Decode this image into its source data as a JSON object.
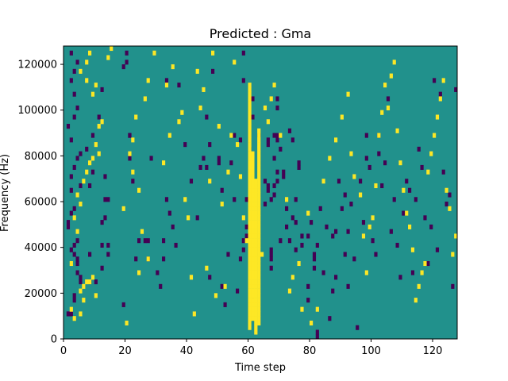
{
  "chart_data": {
    "type": "heatmap",
    "title": "Predicted : Gma",
    "xlabel": "Time step",
    "ylabel": "Frequency (Hz)",
    "xlim": [
      0,
      128
    ],
    "ylim": [
      0,
      128000
    ],
    "x_ticks": [
      0,
      20,
      40,
      60,
      80,
      100,
      120
    ],
    "x_tick_labels": [
      "0",
      "20",
      "40",
      "60",
      "80",
      "100",
      "120"
    ],
    "y_ticks": [
      0,
      20000,
      40000,
      60000,
      80000,
      100000,
      120000
    ],
    "y_tick_labels": [
      "0",
      "20000",
      "40000",
      "60000",
      "80000",
      "100000",
      "120000"
    ],
    "rows": 64,
    "row_height_hz": 2000,
    "colormap": "viridis",
    "value_range": [
      0,
      2
    ],
    "background_value": 1,
    "colors": {
      "0": "#440154",
      "1": "#21918c",
      "2": "#fde725"
    },
    "cells": [
      [
        1,
        5,
        0
      ],
      [
        1,
        5,
        0
      ],
      [
        2,
        5,
        0
      ],
      [
        3,
        8,
        0
      ],
      [
        3,
        9,
        0
      ],
      [
        5,
        13,
        0
      ],
      [
        5,
        12,
        0
      ],
      [
        4,
        14,
        0
      ],
      [
        4,
        16,
        0
      ],
      [
        4,
        17,
        0
      ],
      [
        3,
        18,
        0
      ],
      [
        2,
        19,
        0
      ],
      [
        3,
        20,
        0
      ],
      [
        4,
        21,
        0
      ],
      [
        1,
        24,
        0
      ],
      [
        1,
        25,
        0
      ],
      [
        2,
        27,
        0
      ],
      [
        3,
        28,
        0
      ],
      [
        2,
        32,
        0
      ],
      [
        5,
        33,
        0
      ],
      [
        2,
        35,
        0
      ],
      [
        3,
        37,
        0
      ],
      [
        4,
        39,
        0
      ],
      [
        5,
        40,
        0
      ],
      [
        2,
        43,
        0
      ],
      [
        1,
        46,
        0
      ],
      [
        3,
        48,
        0
      ],
      [
        4,
        50,
        0
      ],
      [
        3,
        53,
        0
      ],
      [
        2,
        56,
        0
      ],
      [
        3,
        58,
        0
      ],
      [
        4,
        60,
        0
      ],
      [
        2,
        62,
        0
      ],
      [
        7,
        41,
        0
      ],
      [
        8,
        33,
        0
      ],
      [
        9,
        44,
        0
      ],
      [
        9,
        36,
        0
      ],
      [
        10,
        12,
        0
      ],
      [
        12,
        54,
        0
      ],
      [
        11,
        48,
        0
      ],
      [
        12,
        15,
        0
      ],
      [
        12,
        20,
        0
      ],
      [
        12,
        25,
        0
      ],
      [
        8,
        12,
        0
      ],
      [
        13,
        26,
        0
      ],
      [
        13,
        30,
        0
      ],
      [
        13,
        35,
        0
      ],
      [
        14,
        30,
        0
      ],
      [
        14,
        18,
        0
      ],
      [
        14,
        20,
        0
      ],
      [
        8,
        18,
        0
      ],
      [
        19,
        7,
        0
      ],
      [
        19,
        59,
        0
      ],
      [
        20,
        62,
        0
      ],
      [
        20,
        60,
        0
      ],
      [
        21,
        39,
        0
      ],
      [
        21,
        44,
        0
      ],
      [
        21,
        44,
        0
      ],
      [
        22,
        34,
        0
      ],
      [
        23,
        17,
        0
      ],
      [
        24,
        21,
        0
      ],
      [
        26,
        21,
        0
      ],
      [
        27,
        21,
        0
      ],
      [
        27,
        17,
        0
      ],
      [
        28,
        39,
        0
      ],
      [
        30,
        14,
        0
      ],
      [
        31,
        11,
        0
      ],
      [
        32,
        17,
        0
      ],
      [
        32,
        21,
        0
      ],
      [
        33,
        30,
        0
      ],
      [
        34,
        27,
        0
      ],
      [
        35,
        24,
        0
      ],
      [
        36,
        20,
        0
      ],
      [
        33,
        56,
        0
      ],
      [
        37,
        55,
        0
      ],
      [
        39,
        42,
        0
      ],
      [
        41,
        34,
        0
      ],
      [
        43,
        26,
        0
      ],
      [
        44,
        37,
        0
      ],
      [
        45,
        39,
        0
      ],
      [
        46,
        48,
        0
      ],
      [
        46,
        37,
        0
      ],
      [
        47,
        42,
        0
      ],
      [
        47,
        13,
        0
      ],
      [
        48,
        58,
        0
      ],
      [
        50,
        38,
        0
      ],
      [
        50,
        39,
        0
      ],
      [
        51,
        11,
        0
      ],
      [
        51,
        32,
        0
      ],
      [
        52,
        7,
        0
      ],
      [
        53,
        18,
        0
      ],
      [
        54,
        38,
        0
      ],
      [
        55,
        44,
        0
      ],
      [
        55,
        30,
        0
      ],
      [
        56,
        10,
        0
      ],
      [
        57,
        43,
        0
      ],
      [
        58,
        62,
        0
      ],
      [
        58,
        56,
        0
      ],
      [
        59,
        24,
        0
      ],
      [
        61,
        52,
        0
      ],
      [
        61,
        48,
        0
      ],
      [
        61,
        9,
        0
      ],
      [
        57,
        17,
        0
      ],
      [
        58,
        19,
        0
      ],
      [
        58,
        21,
        0
      ],
      [
        59,
        22,
        0
      ],
      [
        59,
        30,
        0
      ],
      [
        60,
        40,
        0
      ],
      [
        60,
        41,
        0
      ],
      [
        63,
        44,
        0
      ],
      [
        65,
        34,
        0
      ],
      [
        65,
        29,
        0
      ],
      [
        66,
        32,
        0
      ],
      [
        66,
        33,
        0
      ],
      [
        66,
        42,
        0
      ],
      [
        66,
        43,
        0
      ],
      [
        67,
        15,
        0
      ],
      [
        67,
        17,
        0
      ],
      [
        67,
        18,
        0
      ],
      [
        67,
        19,
        0
      ],
      [
        67,
        30,
        0
      ],
      [
        68,
        44,
        0
      ],
      [
        68,
        39,
        0
      ],
      [
        68,
        31,
        0
      ],
      [
        68,
        33,
        0
      ],
      [
        69,
        36,
        0
      ],
      [
        69,
        34,
        0
      ],
      [
        69,
        43,
        0
      ],
      [
        69,
        44,
        0
      ],
      [
        69,
        50,
        0
      ],
      [
        69,
        52,
        0
      ],
      [
        70,
        41,
        0
      ],
      [
        70,
        21,
        0
      ],
      [
        71,
        35,
        0
      ],
      [
        71,
        36,
        0
      ],
      [
        72,
        24,
        0
      ],
      [
        72,
        28,
        0
      ],
      [
        73,
        21,
        0
      ],
      [
        73,
        45,
        0
      ],
      [
        74,
        26,
        0
      ],
      [
        74,
        43,
        0
      ],
      [
        75,
        19,
        0
      ],
      [
        75,
        25,
        0
      ],
      [
        75,
        30,
        0
      ],
      [
        76,
        37,
        0
      ],
      [
        76,
        38,
        0
      ],
      [
        77,
        20,
        0
      ],
      [
        77,
        22,
        0
      ],
      [
        79,
        22,
        0
      ],
      [
        79,
        11,
        0
      ],
      [
        79,
        8,
        0
      ],
      [
        80,
        25,
        0
      ],
      [
        81,
        17,
        0
      ],
      [
        81,
        15,
        0
      ],
      [
        81,
        18,
        0
      ],
      [
        82,
        20,
        0
      ],
      [
        82,
        0,
        0
      ],
      [
        82,
        1,
        0
      ],
      [
        83,
        28,
        0
      ],
      [
        84,
        14,
        0
      ],
      [
        85,
        24,
        0
      ],
      [
        86,
        4,
        0
      ],
      [
        87,
        10,
        0
      ],
      [
        87,
        22,
        0
      ],
      [
        88,
        23,
        0
      ],
      [
        88,
        13,
        0
      ],
      [
        89,
        34,
        0
      ],
      [
        90,
        28,
        0
      ],
      [
        91,
        31,
        0
      ],
      [
        91,
        18,
        0
      ],
      [
        92,
        11,
        0
      ],
      [
        92,
        23,
        0
      ],
      [
        93,
        29,
        0
      ],
      [
        94,
        17,
        0
      ],
      [
        95,
        2,
        0
      ],
      [
        96,
        34,
        0
      ],
      [
        97,
        25,
        0
      ],
      [
        98,
        44,
        0
      ],
      [
        98,
        39,
        0
      ],
      [
        99,
        37,
        0
      ],
      [
        100,
        21,
        0
      ],
      [
        101,
        18,
        0
      ],
      [
        102,
        44,
        0
      ],
      [
        102,
        40,
        0
      ],
      [
        103,
        33,
        0
      ],
      [
        104,
        38,
        0
      ],
      [
        105,
        52,
        0
      ],
      [
        106,
        23,
        0
      ],
      [
        107,
        30,
        0
      ],
      [
        108,
        20,
        0
      ],
      [
        109,
        13,
        0
      ],
      [
        110,
        27,
        0
      ],
      [
        111,
        34,
        0
      ],
      [
        112,
        32,
        0
      ],
      [
        113,
        14,
        0
      ],
      [
        114,
        30,
        0
      ],
      [
        115,
        41,
        0
      ],
      [
        116,
        37,
        0
      ],
      [
        117,
        26,
        0
      ],
      [
        118,
        16,
        0
      ],
      [
        119,
        24,
        0
      ],
      [
        120,
        56,
        0
      ],
      [
        121,
        19,
        0
      ],
      [
        122,
        53,
        0
      ],
      [
        123,
        36,
        0
      ],
      [
        124,
        29,
        0
      ],
      [
        125,
        31,
        0
      ],
      [
        126,
        11,
        0
      ],
      [
        127,
        54,
        0
      ],
      [
        3,
        4,
        2
      ],
      [
        5,
        5,
        2
      ],
      [
        2,
        6,
        2
      ],
      [
        6,
        8,
        2
      ],
      [
        5,
        10,
        2
      ],
      [
        6,
        11,
        2
      ],
      [
        7,
        12,
        2
      ],
      [
        8,
        12,
        2
      ],
      [
        9,
        13,
        2
      ],
      [
        10,
        9,
        2
      ],
      [
        2,
        16,
        2
      ],
      [
        4,
        23,
        2
      ],
      [
        3,
        26,
        2
      ],
      [
        5,
        29,
        2
      ],
      [
        4,
        31,
        2
      ],
      [
        6,
        34,
        2
      ],
      [
        7,
        36,
        2
      ],
      [
        8,
        38,
        2
      ],
      [
        9,
        39,
        2
      ],
      [
        11,
        40,
        2
      ],
      [
        10,
        42,
        2
      ],
      [
        11,
        46,
        2
      ],
      [
        12,
        47,
        2
      ],
      [
        9,
        53,
        2
      ],
      [
        10,
        55,
        2
      ],
      [
        14,
        61,
        2
      ],
      [
        15,
        63,
        2
      ],
      [
        7,
        56,
        2
      ],
      [
        5,
        58,
        2
      ],
      [
        7,
        60,
        2
      ],
      [
        8,
        62,
        2
      ],
      [
        20,
        3,
        2
      ],
      [
        24,
        14,
        2
      ],
      [
        27,
        17,
        2
      ],
      [
        25,
        23,
        2
      ],
      [
        19,
        28,
        2
      ],
      [
        24,
        32,
        2
      ],
      [
        22,
        36,
        2
      ],
      [
        21,
        40,
        2
      ],
      [
        22,
        43,
        2
      ],
      [
        23,
        48,
        2
      ],
      [
        26,
        52,
        2
      ],
      [
        27,
        56,
        2
      ],
      [
        29,
        62,
        2
      ],
      [
        32,
        38,
        2
      ],
      [
        34,
        44,
        2
      ],
      [
        33,
        55,
        2
      ],
      [
        35,
        59,
        2
      ],
      [
        37,
        47,
        2
      ],
      [
        38,
        49,
        2
      ],
      [
        39,
        30,
        2
      ],
      [
        40,
        26,
        2
      ],
      [
        41,
        13,
        2
      ],
      [
        42,
        5,
        2
      ],
      [
        43,
        58,
        2
      ],
      [
        44,
        50,
        2
      ],
      [
        45,
        54,
        2
      ],
      [
        46,
        15,
        2
      ],
      [
        47,
        34,
        2
      ],
      [
        48,
        62,
        2
      ],
      [
        49,
        9,
        2
      ],
      [
        50,
        46,
        2
      ],
      [
        51,
        29,
        2
      ],
      [
        52,
        11,
        2
      ],
      [
        53,
        36,
        2
      ],
      [
        54,
        44,
        2
      ],
      [
        55,
        60,
        2
      ],
      [
        56,
        42,
        2
      ],
      [
        57,
        35,
        2
      ],
      [
        58,
        26,
        2
      ],
      [
        59,
        21,
        2
      ],
      [
        64,
        18,
        2
      ],
      [
        65,
        50,
        2
      ],
      [
        66,
        47,
        2
      ],
      [
        67,
        52,
        2
      ],
      [
        68,
        55,
        2
      ],
      [
        70,
        44,
        2
      ],
      [
        72,
        30,
        2
      ],
      [
        73,
        10,
        2
      ],
      [
        74,
        13,
        2
      ],
      [
        76,
        16,
        2
      ],
      [
        77,
        6,
        2
      ],
      [
        79,
        27,
        2
      ],
      [
        80,
        3,
        2
      ],
      [
        82,
        6,
        2
      ],
      [
        84,
        34,
        2
      ],
      [
        86,
        39,
        2
      ],
      [
        88,
        43,
        2
      ],
      [
        90,
        48,
        2
      ],
      [
        92,
        53,
        2
      ],
      [
        93,
        40,
        2
      ],
      [
        94,
        35,
        2
      ],
      [
        96,
        31,
        2
      ],
      [
        97,
        22,
        2
      ],
      [
        98,
        14,
        2
      ],
      [
        99,
        24,
        2
      ],
      [
        100,
        26,
        2
      ],
      [
        101,
        33,
        2
      ],
      [
        102,
        44,
        2
      ],
      [
        103,
        49,
        2
      ],
      [
        104,
        55,
        2
      ],
      [
        105,
        50,
        2
      ],
      [
        106,
        57,
        2
      ],
      [
        107,
        60,
        2
      ],
      [
        108,
        45,
        2
      ],
      [
        109,
        38,
        2
      ],
      [
        110,
        32,
        2
      ],
      [
        111,
        27,
        2
      ],
      [
        112,
        24,
        2
      ],
      [
        113,
        19,
        2
      ],
      [
        114,
        8,
        2
      ],
      [
        115,
        11,
        2
      ],
      [
        116,
        14,
        2
      ],
      [
        117,
        16,
        2
      ],
      [
        118,
        36,
        2
      ],
      [
        119,
        40,
        2
      ],
      [
        120,
        44,
        2
      ],
      [
        121,
        48,
        2
      ],
      [
        122,
        52,
        2
      ],
      [
        123,
        56,
        2
      ],
      [
        124,
        32,
        2
      ],
      [
        125,
        28,
        2
      ],
      [
        126,
        18,
        2
      ],
      [
        127,
        22,
        2
      ]
    ],
    "yellow_band": {
      "columns": [
        60,
        61,
        62,
        63
      ],
      "row_ranges": [
        [
          2,
          55
        ],
        [
          4,
          40
        ],
        [
          1,
          34
        ],
        [
          3,
          45
        ]
      ]
    }
  }
}
